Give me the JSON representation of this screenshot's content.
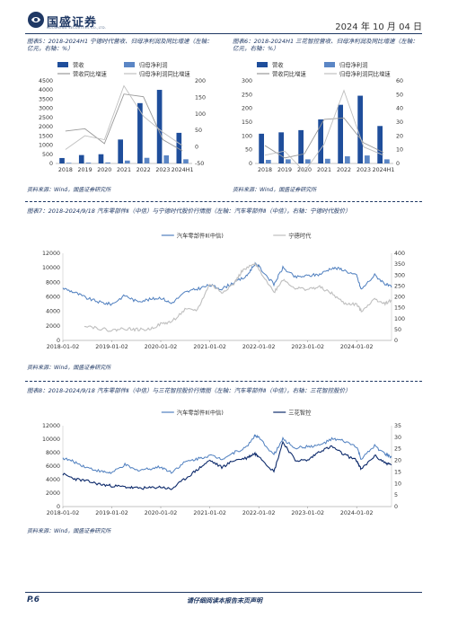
{
  "header": {
    "logo": "国盛证券",
    "logo_sub": "GUOSHENG SECURITIES CO.,LTD.",
    "date": "2024 年 10 月 04 日"
  },
  "figures": {
    "f5": {
      "title_l1": "图表5：2018-2024H1 宁德时代营收、归母净利润及同比增速（左轴：",
      "title_l2": "亿元，右轴：%）",
      "source": "资料来源：Wind，国盛证券研究所"
    },
    "f6": {
      "title_l1": "图表6：2018-2024H1 三花智控营收、归母净利润及同比增速（左轴：",
      "title_l2": "亿元，右轴：%）",
      "source": "资料来源：Wind，国盛证券研究所"
    },
    "f7": {
      "title": "图表7：2018-2024/9/18 汽车零部件Ⅱ（中信）与宁德时代股价行情图（左轴：汽车零部件Ⅱ（中信），右轴：宁德时代股价）",
      "source": "资料来源：Wind，国盛证券研究所"
    },
    "f8": {
      "title": "图表8：2018-2024/9/18 汽车零部件Ⅱ（中信）与三花智控股价行情图（左轴：汽车零部件Ⅱ（中信），右轴：三花智控股价）",
      "source": "资料来源：Wind，国盛证券研究所"
    }
  },
  "footer": {
    "page": "P.6",
    "note": "请仔细阅读本报告末页声明"
  },
  "colors": {
    "dark": "#1f3864",
    "bar_dark": "#1f4e9b",
    "bar_light": "#5b86c5",
    "line_gray": "#999999",
    "line_lightgray": "#bfbfbf",
    "line_blue": "#4f7fbf",
    "line_navy": "#0d2a6b"
  },
  "chart_data": [
    {
      "type": "bar",
      "id": "f5",
      "categories": [
        "2018",
        "2019",
        "2020",
        "2021",
        "2022",
        "2023",
        "2024H1"
      ],
      "series": [
        {
          "name": "营收",
          "kind": "bar",
          "axis": "left",
          "values": [
            296,
            458,
            503,
            1304,
            3286,
            4009,
            1668
          ]
        },
        {
          "name": "归母净利润",
          "kind": "bar",
          "axis": "left",
          "values": [
            34,
            46,
            56,
            159,
            307,
            441,
            228
          ]
        },
        {
          "name": "营收同比增速",
          "kind": "line",
          "axis": "right",
          "values": [
            48,
            55,
            10,
            160,
            152,
            22,
            -12
          ]
        },
        {
          "name": "归母净利润同比增速",
          "kind": "line",
          "axis": "right",
          "values": [
            -8,
            34,
            22,
            185,
            93,
            44,
            4
          ]
        }
      ],
      "ylim_left": [
        0,
        4500
      ],
      "yticks_left": [
        0,
        500,
        1000,
        1500,
        2000,
        2500,
        3000,
        3500,
        4000,
        4500
      ],
      "ylim_right": [
        -50,
        200
      ],
      "yticks_right": [
        -50,
        0,
        50,
        100,
        150,
        200
      ]
    },
    {
      "type": "bar",
      "id": "f6",
      "categories": [
        "2018",
        "2019",
        "2020",
        "2021",
        "2022",
        "2023",
        "2024H1"
      ],
      "series": [
        {
          "name": "营收",
          "kind": "bar",
          "axis": "left",
          "values": [
            108,
            113,
            121,
            160,
            213,
            246,
            136
          ]
        },
        {
          "name": "归母净利润",
          "kind": "bar",
          "axis": "left",
          "values": [
            13,
            15,
            15,
            17,
            26,
            29,
            15
          ]
        },
        {
          "name": "营收同比增速",
          "kind": "line",
          "axis": "right",
          "values": [
            13,
            4,
            7,
            32,
            33,
            15,
            8
          ]
        },
        {
          "name": "归母净利润同比增速",
          "kind": "line",
          "axis": "right",
          "values": [
            6,
            9,
            -6,
            14,
            53,
            12,
            6
          ]
        }
      ],
      "ylim_left": [
        0,
        300
      ],
      "yticks_left": [
        0,
        50,
        100,
        150,
        200,
        250,
        300
      ],
      "ylim_right": [
        0,
        60
      ],
      "yticks_right": [
        0,
        10,
        20,
        30,
        40,
        50,
        60
      ]
    },
    {
      "type": "line",
      "id": "f7",
      "x_ticks": [
        "2018-01-02",
        "2019-01-02",
        "2020-01-02",
        "2021-01-02",
        "2022-01-02",
        "2023-01-02",
        "2024-01-02"
      ],
      "x_range": [
        "2018-01-02",
        "2024-09-18"
      ],
      "series": [
        {
          "name": "汽车零部件Ⅱ(中信)",
          "axis": "left",
          "points": [
            [
              "2018-01-02",
              7200
            ],
            [
              "2018-04-01",
              6600
            ],
            [
              "2018-07-01",
              5800
            ],
            [
              "2018-10-15",
              5200
            ],
            [
              "2019-01-02",
              5000
            ],
            [
              "2019-04-10",
              6200
            ],
            [
              "2019-07-01",
              5400
            ],
            [
              "2019-10-01",
              5600
            ],
            [
              "2020-01-02",
              5900
            ],
            [
              "2020-03-20",
              5100
            ],
            [
              "2020-07-01",
              6600
            ],
            [
              "2020-10-01",
              7100
            ],
            [
              "2021-01-02",
              7600
            ],
            [
              "2021-04-01",
              7100
            ],
            [
              "2021-07-01",
              8000
            ],
            [
              "2021-10-01",
              8800
            ],
            [
              "2021-12-01",
              10500
            ],
            [
              "2022-01-02",
              10200
            ],
            [
              "2022-04-25",
              7700
            ],
            [
              "2022-07-01",
              10000
            ],
            [
              "2022-10-01",
              8700
            ],
            [
              "2023-01-02",
              8900
            ],
            [
              "2023-04-01",
              9100
            ],
            [
              "2023-07-01",
              10000
            ],
            [
              "2023-09-15",
              9800
            ],
            [
              "2024-01-02",
              8900
            ],
            [
              "2024-02-05",
              7000
            ],
            [
              "2024-05-15",
              9000
            ],
            [
              "2024-08-01",
              7800
            ],
            [
              "2024-09-18",
              7300
            ]
          ]
        },
        {
          "name": "宁德时代",
          "axis": "right",
          "points": [
            [
              "2018-06-11",
              70
            ],
            [
              "2018-10-01",
              55
            ],
            [
              "2019-01-02",
              45
            ],
            [
              "2019-04-01",
              55
            ],
            [
              "2019-07-01",
              50
            ],
            [
              "2019-10-01",
              50
            ],
            [
              "2020-01-02",
              75
            ],
            [
              "2020-03-20",
              85
            ],
            [
              "2020-07-01",
              140
            ],
            [
              "2020-10-01",
              140
            ],
            [
              "2021-01-02",
              260
            ],
            [
              "2021-04-01",
              220
            ],
            [
              "2021-07-01",
              260
            ],
            [
              "2021-09-01",
              320
            ],
            [
              "2021-12-01",
              350
            ],
            [
              "2022-01-02",
              330
            ],
            [
              "2022-04-25",
              220
            ],
            [
              "2022-07-01",
              280
            ],
            [
              "2022-10-01",
              240
            ],
            [
              "2023-01-02",
              235
            ],
            [
              "2023-04-01",
              245
            ],
            [
              "2023-07-01",
              215
            ],
            [
              "2023-10-01",
              170
            ],
            [
              "2024-01-02",
              165
            ],
            [
              "2024-02-05",
              135
            ],
            [
              "2024-05-15",
              190
            ],
            [
              "2024-08-01",
              170
            ],
            [
              "2024-09-18",
              185
            ]
          ]
        }
      ],
      "ylim_left": [
        0,
        12000
      ],
      "yticks_left": [
        0,
        2000,
        4000,
        6000,
        8000,
        10000,
        12000
      ],
      "ylim_right": [
        0,
        400
      ],
      "yticks_right": [
        0,
        50,
        100,
        150,
        200,
        250,
        300,
        350,
        400
      ]
    },
    {
      "type": "line",
      "id": "f8",
      "x_ticks": [
        "2018-01-02",
        "2019-01-02",
        "2020-01-02",
        "2021-01-02",
        "2022-01-02",
        "2023-01-02",
        "2024-01-02"
      ],
      "x_range": [
        "2018-01-02",
        "2024-09-18"
      ],
      "series": [
        {
          "name": "汽车零部件Ⅱ(中信)",
          "axis": "left",
          "points": [
            [
              "2018-01-02",
              7200
            ],
            [
              "2018-04-01",
              6600
            ],
            [
              "2018-07-01",
              5800
            ],
            [
              "2018-10-15",
              5200
            ],
            [
              "2019-01-02",
              5000
            ],
            [
              "2019-04-10",
              6200
            ],
            [
              "2019-07-01",
              5400
            ],
            [
              "2019-10-01",
              5600
            ],
            [
              "2020-01-02",
              5900
            ],
            [
              "2020-03-20",
              5100
            ],
            [
              "2020-07-01",
              6600
            ],
            [
              "2020-10-01",
              7100
            ],
            [
              "2021-01-02",
              7600
            ],
            [
              "2021-04-01",
              7100
            ],
            [
              "2021-07-01",
              8000
            ],
            [
              "2021-10-01",
              8800
            ],
            [
              "2021-12-01",
              10500
            ],
            [
              "2022-01-02",
              10200
            ],
            [
              "2022-04-25",
              7700
            ],
            [
              "2022-07-01",
              10000
            ],
            [
              "2022-10-01",
              8700
            ],
            [
              "2023-01-02",
              8900
            ],
            [
              "2023-04-01",
              9100
            ],
            [
              "2023-07-01",
              10000
            ],
            [
              "2023-09-15",
              9800
            ],
            [
              "2024-01-02",
              8900
            ],
            [
              "2024-02-05",
              7000
            ],
            [
              "2024-05-15",
              9000
            ],
            [
              "2024-08-01",
              7800
            ],
            [
              "2024-09-18",
              7300
            ]
          ]
        },
        {
          "name": "三花智控",
          "axis": "right",
          "points": [
            [
              "2018-01-02",
              14
            ],
            [
              "2018-04-01",
              12
            ],
            [
              "2018-07-01",
              11
            ],
            [
              "2018-10-15",
              9.5
            ],
            [
              "2019-01-02",
              9
            ],
            [
              "2019-04-10",
              8.5
            ],
            [
              "2019-07-01",
              8
            ],
            [
              "2019-10-01",
              8
            ],
            [
              "2020-01-02",
              8.5
            ],
            [
              "2020-03-20",
              7.5
            ],
            [
              "2020-07-01",
              12
            ],
            [
              "2020-10-01",
              16
            ],
            [
              "2021-01-02",
              20
            ],
            [
              "2021-04-01",
              17
            ],
            [
              "2021-07-01",
              20
            ],
            [
              "2021-10-01",
              21
            ],
            [
              "2021-12-01",
              23
            ],
            [
              "2022-01-02",
              22
            ],
            [
              "2022-04-25",
              15
            ],
            [
              "2022-07-01",
              28
            ],
            [
              "2022-10-01",
              20
            ],
            [
              "2023-01-02",
              20
            ],
            [
              "2023-04-01",
              24
            ],
            [
              "2023-07-01",
              26
            ],
            [
              "2023-09-15",
              23
            ],
            [
              "2024-01-02",
              20
            ],
            [
              "2024-02-05",
              16
            ],
            [
              "2024-05-15",
              22
            ],
            [
              "2024-08-01",
              19
            ],
            [
              "2024-09-18",
              18
            ]
          ]
        }
      ],
      "ylim_left": [
        0,
        12000
      ],
      "yticks_left": [
        0,
        2000,
        4000,
        6000,
        8000,
        10000,
        12000
      ],
      "ylim_right": [
        0,
        35
      ],
      "yticks_right": [
        0,
        5,
        10,
        15,
        20,
        25,
        30,
        35
      ]
    }
  ]
}
